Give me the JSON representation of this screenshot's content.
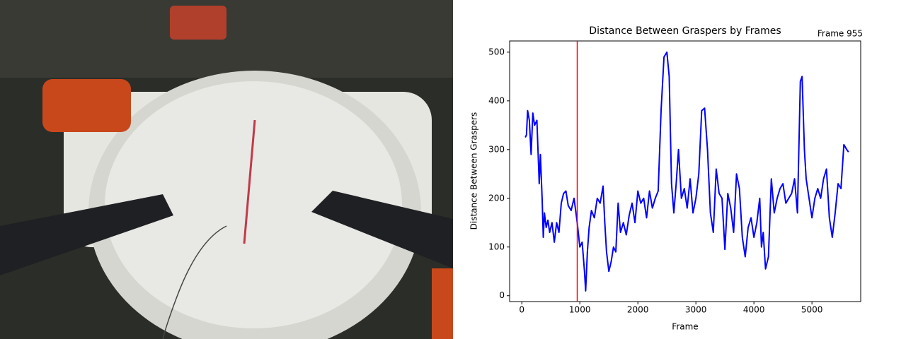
{
  "chart_data": {
    "type": "line",
    "title": "Distance Between Graspers by Frames",
    "x_label": "Frame",
    "y_label": "Distance Between Graspers",
    "marker_label": "Frame 955",
    "marker_x": 955,
    "marker_color": "red",
    "color": "blue",
    "xlim": [
      -210,
      5840
    ],
    "ylim": [
      -12,
      523
    ],
    "xticks": [
      0,
      1000,
      2000,
      3000,
      4000,
      5000
    ],
    "yticks": [
      0,
      100,
      200,
      300,
      400,
      500
    ],
    "x": [
      60,
      80,
      100,
      130,
      160,
      190,
      220,
      260,
      300,
      320,
      350,
      370,
      390,
      420,
      450,
      480,
      520,
      560,
      600,
      640,
      680,
      720,
      760,
      800,
      850,
      900,
      955,
      1000,
      1040,
      1080,
      1100,
      1130,
      1160,
      1200,
      1250,
      1300,
      1350,
      1400,
      1430,
      1460,
      1500,
      1540,
      1580,
      1620,
      1660,
      1700,
      1750,
      1800,
      1850,
      1900,
      1950,
      2000,
      2050,
      2100,
      2150,
      2200,
      2250,
      2300,
      2350,
      2400,
      2450,
      2500,
      2540,
      2580,
      2620,
      2660,
      2700,
      2750,
      2800,
      2850,
      2900,
      2950,
      3000,
      3050,
      3100,
      3150,
      3200,
      3250,
      3300,
      3350,
      3400,
      3450,
      3500,
      3550,
      3600,
      3650,
      3700,
      3750,
      3800,
      3850,
      3900,
      3950,
      4000,
      4050,
      4100,
      4130,
      4160,
      4200,
      4250,
      4300,
      4350,
      4400,
      4450,
      4500,
      4550,
      4600,
      4650,
      4700,
      4750,
      4800,
      4830,
      4870,
      4900,
      4950,
      5000,
      5050,
      5100,
      5150,
      5200,
      5250,
      5300,
      5350,
      5400,
      5450,
      5500,
      5550,
      5600,
      5630
    ],
    "values": [
      325,
      330,
      380,
      360,
      290,
      375,
      350,
      360,
      230,
      290,
      200,
      120,
      170,
      140,
      155,
      130,
      150,
      110,
      150,
      130,
      190,
      210,
      215,
      185,
      175,
      200,
      150,
      100,
      110,
      50,
      10,
      90,
      140,
      175,
      160,
      200,
      190,
      225,
      150,
      90,
      50,
      70,
      100,
      90,
      190,
      130,
      150,
      125,
      165,
      190,
      150,
      215,
      190,
      200,
      160,
      215,
      180,
      200,
      215,
      380,
      490,
      500,
      450,
      230,
      170,
      230,
      300,
      200,
      220,
      180,
      240,
      170,
      200,
      250,
      380,
      385,
      300,
      170,
      130,
      260,
      210,
      200,
      95,
      210,
      180,
      130,
      250,
      220,
      120,
      80,
      140,
      160,
      120,
      150,
      200,
      100,
      130,
      55,
      80,
      240,
      170,
      200,
      220,
      230,
      190,
      200,
      210,
      240,
      170,
      440,
      450,
      300,
      240,
      200,
      160,
      200,
      220,
      200,
      240,
      260,
      160,
      120,
      170,
      230,
      220,
      310,
      300,
      295
    ]
  }
}
